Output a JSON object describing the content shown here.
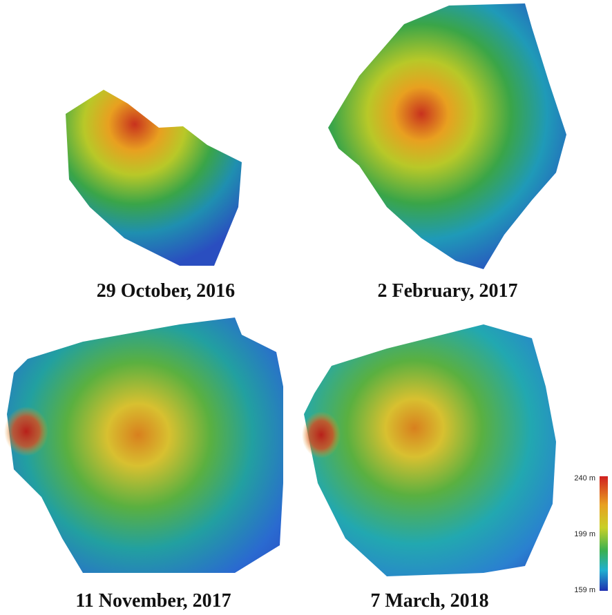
{
  "panels": [
    {
      "caption": "29 October, 2016"
    },
    {
      "caption": "2 February, 2017"
    },
    {
      "caption": "11 November, 2017"
    },
    {
      "caption": "7 March, 2018"
    }
  ],
  "legend": {
    "labels": [
      "240 m",
      "199 m",
      "159 m"
    ]
  }
}
